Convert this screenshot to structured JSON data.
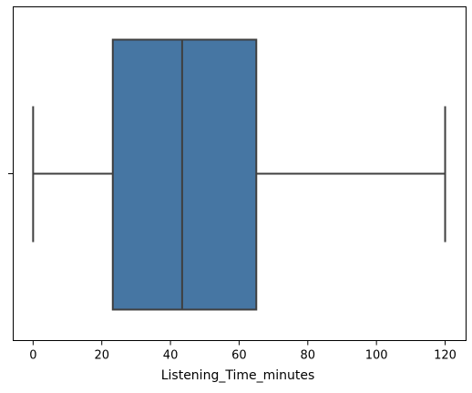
{
  "chart_data": {
    "type": "box",
    "title": "",
    "xlabel": "Listening_Time_minutes",
    "ylabel": "",
    "orientation": "horizontal",
    "xlim": [
      -5.8,
      126.1
    ],
    "xticks": [
      0,
      20,
      40,
      60,
      80,
      100,
      120
    ],
    "grid": false,
    "series": [
      {
        "stats": {
          "whisker_low": 0,
          "q1": 23.2,
          "median": 43.4,
          "q3": 65.0,
          "whisker_high": 120
        },
        "fill_color": "#4676a3",
        "line_color": "#3f3f3f"
      }
    ]
  }
}
